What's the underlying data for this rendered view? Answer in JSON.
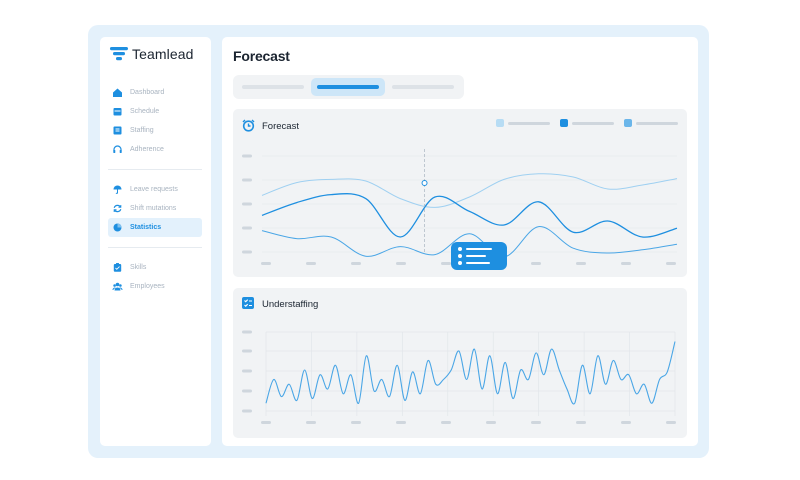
{
  "app": {
    "name": "Teamlead"
  },
  "page": {
    "title": "Forecast"
  },
  "sidebar": {
    "groups": [
      [
        {
          "label": "Dashboard",
          "icon": "home-icon"
        },
        {
          "label": "Schedule",
          "icon": "calendar-icon"
        },
        {
          "label": "Staffing",
          "icon": "clipboard-icon"
        },
        {
          "label": "Adherence",
          "icon": "headset-icon"
        }
      ],
      [
        {
          "label": "Leave requests",
          "icon": "umbrella-icon"
        },
        {
          "label": "Shift mutations",
          "icon": "refresh-icon"
        },
        {
          "label": "Statistics",
          "icon": "pie-chart-icon",
          "active": true
        }
      ],
      [
        {
          "label": "Skills",
          "icon": "clipboard-check-icon"
        },
        {
          "label": "Employees",
          "icon": "users-icon"
        }
      ]
    ]
  },
  "tabs": [
    {
      "active": false
    },
    {
      "active": true
    },
    {
      "active": false
    }
  ],
  "forecast_card": {
    "title": "Forecast",
    "legend_colors": [
      "#b7dcf4",
      "#1e8fe0",
      "#6bb6ea"
    ]
  },
  "understaffing_card": {
    "title": "Understaffing"
  },
  "colors": {
    "accent": "#1e8fe0",
    "light": "#9fd0f1",
    "mid": "#4aa6e6",
    "frame": "#e4f1fb"
  },
  "chart_data": [
    {
      "type": "line",
      "title": "Forecast",
      "series": [
        {
          "color": "#9fd0f1",
          "values": [
            0.62,
            0.78,
            0.82,
            0.8,
            0.58,
            0.47,
            0.6,
            0.82,
            0.89,
            0.85,
            0.7,
            0.75,
            0.83
          ]
        },
        {
          "color": "#1e8fe0",
          "values": [
            0.37,
            0.53,
            0.63,
            0.58,
            0.1,
            0.6,
            0.42,
            0.25,
            0.54,
            0.16,
            0.3,
            0.1,
            0.21
          ]
        },
        {
          "color": "#4aa6e6",
          "values": [
            0.18,
            0.08,
            0.1,
            -0.14,
            -0.02,
            -0.12,
            0.14,
            -0.15,
            0.23,
            -0.04,
            -0.1,
            -0.06,
            0.01
          ]
        }
      ],
      "highlight_index": 4.7
    },
    {
      "type": "line",
      "title": "Understaffing",
      "series": [
        {
          "color": "#4aa6e6",
          "values": [
            0.05,
            0.3,
            0.12,
            0.25,
            0.08,
            0.4,
            0.1,
            0.35,
            0.2,
            0.45,
            0.15,
            0.35,
            0.05,
            0.55,
            0.18,
            0.3,
            0.12,
            0.45,
            0.08,
            0.38,
            0.15,
            0.5,
            0.25,
            0.3,
            0.4,
            0.6,
            0.3,
            0.62,
            0.2,
            0.55,
            0.15,
            0.48,
            0.1,
            0.4,
            0.3,
            0.58,
            0.35,
            0.62,
            0.4,
            0.2,
            0.05,
            0.45,
            0.15,
            0.55,
            0.25,
            0.5,
            0.3,
            0.35,
            0.15,
            0.25,
            0.05,
            0.3,
            0.38,
            0.7
          ]
        }
      ]
    }
  ]
}
